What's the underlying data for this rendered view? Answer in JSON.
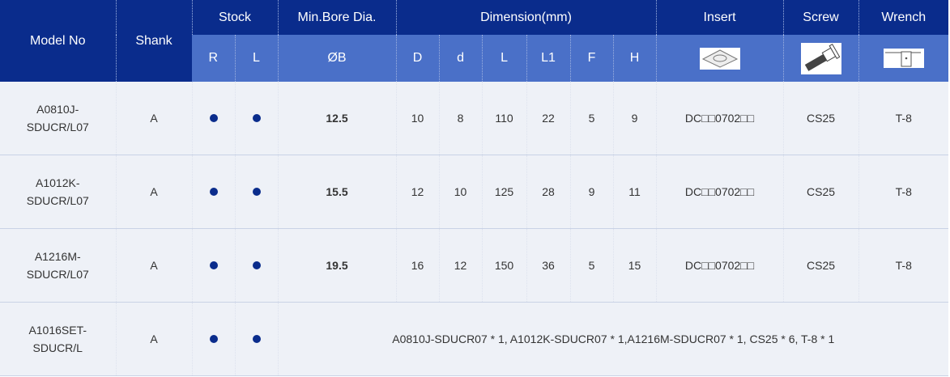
{
  "header": {
    "model": "Model No",
    "shank": "Shank",
    "stock": "Stock",
    "bore": "Min.Bore Dia.",
    "dimension": "Dimension(mm)",
    "insert": "Insert",
    "screw": "Screw",
    "wrench": "Wrench",
    "sub": {
      "r": "R",
      "l": "L",
      "b": "ØB",
      "D": "D",
      "d": "d",
      "L": "L",
      "L1": "L1",
      "F": "F",
      "H": "H"
    }
  },
  "rows": [
    {
      "model1": "A0810J-",
      "model2": "SDUCR/L07",
      "shank": "A",
      "b": "12.5",
      "D": "10",
      "d": "8",
      "L": "110",
      "L1": "22",
      "F": "5",
      "H": "9",
      "insert": "DC□□0702□□",
      "screw": "CS25",
      "wrench": "T-8"
    },
    {
      "model1": "A1012K-",
      "model2": "SDUCR/L07",
      "shank": "A",
      "b": "15.5",
      "D": "12",
      "d": "10",
      "L": "125",
      "L1": "28",
      "F": "9",
      "H": "11",
      "insert": "DC□□0702□□",
      "screw": "CS25",
      "wrench": "T-8"
    },
    {
      "model1": "A1216M-",
      "model2": "SDUCR/L07",
      "shank": "A",
      "b": "19.5",
      "D": "16",
      "d": "12",
      "L": "150",
      "L1": "36",
      "F": "5",
      "H": "15",
      "insert": "DC□□0702□□",
      "screw": "CS25",
      "wrench": "T-8"
    }
  ],
  "set": {
    "model1": "A1016SET-",
    "model2": "SDUCR/L",
    "shank": "A",
    "contents": "A0810J-SDUCR07 * 1, A1012K-SDUCR07 * 1,A1216M-SDUCR07 * 1, CS25 * 6, T-8 * 1"
  },
  "colors": {
    "header": "#0a2c8c",
    "subheader": "#4a70c8",
    "stock_dot": "#0a2c8c"
  }
}
